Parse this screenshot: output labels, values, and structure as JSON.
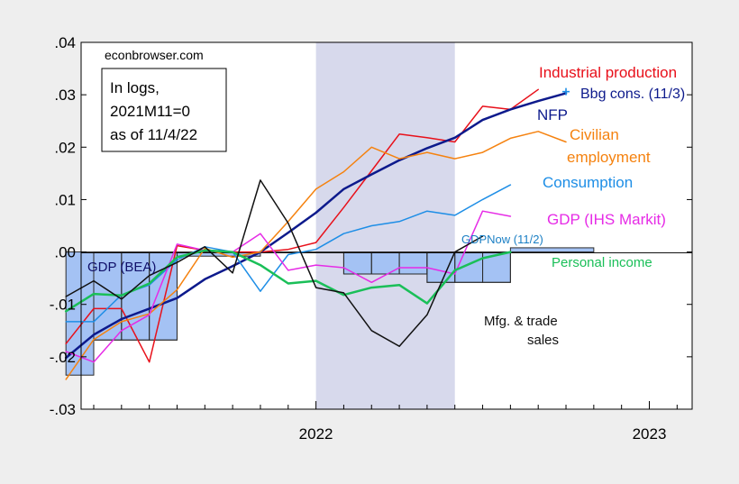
{
  "chart_data": {
    "type": "line",
    "watermark": "econbrowser.com",
    "note_lines": [
      "In logs,",
      "2021M11=0",
      "as of 11/4/22"
    ],
    "ylim": [
      -0.03,
      0.04
    ],
    "y_ticks": [
      {
        "value": 0.04,
        "label": ".04"
      },
      {
        "value": 0.03,
        "label": ".03"
      },
      {
        "value": 0.02,
        "label": ".02"
      },
      {
        "value": 0.01,
        "label": ".01"
      },
      {
        "value": 0.0,
        "label": ".00"
      },
      {
        "value": -0.01,
        "label": "-.01"
      },
      {
        "value": -0.02,
        "label": "-.02"
      },
      {
        "value": -0.03,
        "label": "-.03"
      }
    ],
    "x_start": "2021-04",
    "x_end": "2023-03",
    "x_tick_months": [
      "2021-05",
      "2021-06",
      "2021-07",
      "2021-08",
      "2021-09",
      "2021-10",
      "2021-11",
      "2021-12",
      "2022-01",
      "2022-02",
      "2022-03",
      "2022-04",
      "2022-05",
      "2022-06",
      "2022-07",
      "2022-08",
      "2022-09",
      "2022-10",
      "2022-11",
      "2022-12",
      "2023-01",
      "2023-02"
    ],
    "x_year_labels": [
      {
        "month": "2022-01",
        "label": "2022"
      },
      {
        "month": "2023-01",
        "label": "2023"
      }
    ],
    "recession_shade": {
      "from": "2022-01",
      "to": "2022-06",
      "color": "#d7d9ec"
    },
    "bars": [
      {
        "name": "GDP (BEA)",
        "color": "#a4c2f4",
        "edge": "#2b2b2b",
        "label_color": "#10106a",
        "values": [
          {
            "from": "2021-04",
            "to": "2021-05",
            "value": -0.0235
          },
          {
            "from": "2021-05",
            "to": "2021-08",
            "value": -0.0168
          },
          {
            "from": "2021-08",
            "to": "2021-11",
            "value": -0.0008
          },
          {
            "from": "2021-11",
            "to": "2022-02",
            "value": 0.0
          },
          {
            "from": "2022-02",
            "to": "2022-05",
            "value": -0.0042
          },
          {
            "from": "2022-05",
            "to": "2022-08",
            "value": -0.0058
          }
        ]
      },
      {
        "name": "GDPNow (11/2)",
        "color": "#a4c2f4",
        "edge": "#2b2b2b",
        "label_color": "#1a7fc4",
        "values": [
          {
            "from": "2022-08",
            "to": "2022-11",
            "value": 0.0008
          }
        ]
      },
      {
        "name": "GDP (IHS Markit)",
        "color": "none",
        "edge": "#2b2b2b",
        "label_color": "#e62be6",
        "values": [
          {
            "from": "2021-05",
            "to": "2021-06",
            "value": -0.0168
          },
          {
            "from": "2021-06",
            "to": "2021-07",
            "value": -0.0168
          },
          {
            "from": "2021-07",
            "to": "2021-08",
            "value": -0.0168
          },
          {
            "from": "2022-02",
            "to": "2022-03",
            "value": -0.0042
          },
          {
            "from": "2022-03",
            "to": "2022-04",
            "value": -0.0042
          },
          {
            "from": "2022-04",
            "to": "2022-05",
            "value": -0.0042
          },
          {
            "from": "2022-05",
            "to": "2022-06",
            "value": -0.0058
          },
          {
            "from": "2022-06",
            "to": "2022-07",
            "value": -0.0058
          },
          {
            "from": "2022-07",
            "to": "2022-08",
            "value": -0.0058
          }
        ]
      }
    ],
    "series": [
      {
        "name": "Industrial production",
        "color": "#e8101a",
        "width": 1.5,
        "x": [
          "2021-04",
          "2021-05",
          "2021-06",
          "2021-07",
          "2021-08",
          "2021-09",
          "2021-10",
          "2021-11",
          "2021-12",
          "2022-01",
          "2022-02",
          "2022-03",
          "2022-04",
          "2022-05",
          "2022-06",
          "2022-07",
          "2022-08",
          "2022-09",
          "2022-10"
        ],
        "y": [
          -0.0175,
          -0.0108,
          -0.0108,
          -0.021,
          0.0012,
          0.0003,
          0.0,
          0.0,
          0.0005,
          0.0018,
          0.0085,
          0.0155,
          0.0225,
          0.0218,
          0.021,
          0.0278,
          0.0272,
          0.031,
          null
        ]
      },
      {
        "name": "NFP",
        "color": "#0d1a8c",
        "width": 2.5,
        "x": [
          "2021-04",
          "2021-05",
          "2021-06",
          "2021-07",
          "2021-08",
          "2021-09",
          "2021-10",
          "2021-11",
          "2021-12",
          "2022-01",
          "2022-02",
          "2022-03",
          "2022-04",
          "2022-05",
          "2022-06",
          "2022-07",
          "2022-08",
          "2022-09",
          "2022-10"
        ],
        "y": [
          -0.0202,
          -0.0158,
          -0.0128,
          -0.0108,
          -0.0088,
          -0.0052,
          -0.0027,
          0.0,
          0.0037,
          0.0075,
          0.012,
          0.0148,
          0.0175,
          0.0198,
          0.0218,
          0.0252,
          0.0272,
          0.0288,
          0.0303
        ]
      },
      {
        "name": "Civilian employment",
        "color": "#f5820f",
        "width": 1.5,
        "x": [
          "2021-04",
          "2021-05",
          "2021-06",
          "2021-07",
          "2021-08",
          "2021-09",
          "2021-10",
          "2021-11",
          "2021-12",
          "2022-01",
          "2022-02",
          "2022-03",
          "2022-04",
          "2022-05",
          "2022-06",
          "2022-07",
          "2022-08",
          "2022-09",
          "2022-10"
        ],
        "y": [
          -0.0243,
          -0.0167,
          -0.0133,
          -0.0118,
          -0.0072,
          0.0007,
          -0.001,
          0.0,
          0.0058,
          0.012,
          0.0153,
          0.02,
          0.0178,
          0.019,
          0.0178,
          0.019,
          0.0217,
          0.023,
          0.021
        ]
      },
      {
        "name": "Consumption",
        "color": "#1e8ee6",
        "width": 1.5,
        "x": [
          "2021-04",
          "2021-05",
          "2021-06",
          "2021-07",
          "2021-08",
          "2021-09",
          "2021-10",
          "2021-11",
          "2021-12",
          "2022-01",
          "2022-02",
          "2022-03",
          "2022-04",
          "2022-05",
          "2022-06",
          "2022-07",
          "2022-08",
          "2022-09"
        ],
        "y": [
          -0.0133,
          -0.0133,
          -0.0082,
          -0.0063,
          -0.0015,
          0.001,
          0.0,
          -0.0075,
          -0.0005,
          0.0005,
          0.0035,
          0.005,
          0.0058,
          0.0078,
          0.007,
          0.01,
          0.0128,
          null
        ]
      },
      {
        "name": "GDP (IHS Markit)",
        "color": "#e62be6",
        "width": 1.5,
        "x": [
          "2021-04",
          "2021-05",
          "2021-06",
          "2021-07",
          "2021-08",
          "2021-09",
          "2021-10",
          "2021-11",
          "2021-12",
          "2022-01",
          "2022-02",
          "2022-03",
          "2022-04",
          "2022-05",
          "2022-06",
          "2022-07",
          "2022-08",
          "2022-09"
        ],
        "y": [
          -0.019,
          -0.021,
          -0.015,
          -0.012,
          0.0015,
          0.0003,
          0.0,
          0.0035,
          -0.0035,
          -0.0025,
          -0.003,
          -0.0058,
          -0.003,
          -0.003,
          -0.0042,
          0.0078,
          0.0068,
          null
        ]
      },
      {
        "name": "Personal income",
        "color": "#1abf58",
        "width": 2.5,
        "x": [
          "2021-04",
          "2021-05",
          "2021-06",
          "2021-07",
          "2021-08",
          "2021-09",
          "2021-10",
          "2021-11",
          "2021-12",
          "2022-01",
          "2022-02",
          "2022-03",
          "2022-04",
          "2022-05",
          "2022-06",
          "2022-07",
          "2022-08",
          "2022-09"
        ],
        "y": [
          -0.0113,
          -0.008,
          -0.0083,
          -0.006,
          -0.001,
          0.0003,
          0.0,
          -0.0025,
          -0.006,
          -0.0055,
          -0.0082,
          -0.0068,
          -0.0063,
          -0.0098,
          -0.0035,
          -0.0012,
          0.0,
          null
        ]
      },
      {
        "name": "Mfg. & trade sales",
        "color": "#111111",
        "width": 1.5,
        "x": [
          "2021-04",
          "2021-05",
          "2021-06",
          "2021-07",
          "2021-08",
          "2021-09",
          "2021-10",
          "2021-11",
          "2021-12",
          "2022-01",
          "2022-02",
          "2022-03",
          "2022-04",
          "2022-05",
          "2022-06",
          "2022-07",
          "2022-08"
        ],
        "y": [
          -0.0085,
          -0.0055,
          -0.009,
          -0.0045,
          -0.002,
          0.001,
          -0.004,
          0.0137,
          0.0055,
          -0.0068,
          -0.0078,
          -0.015,
          -0.018,
          -0.012,
          0.0,
          0.003,
          null
        ]
      }
    ],
    "markers": [
      {
        "name": "Bbg cons. (11/3)",
        "x": "2022-10",
        "y": 0.0306,
        "color": "#1e8ee6",
        "symbol": "+"
      }
    ],
    "labels": [
      {
        "text": "Industrial production",
        "color": "#e8101a"
      },
      {
        "text": "Bbg cons. (11/3)",
        "color": "#0d1a8c"
      },
      {
        "text": "NFP",
        "color": "#0d1a8c"
      },
      {
        "text": "Civilian",
        "color": "#f5820f"
      },
      {
        "text": "employment",
        "color": "#f5820f"
      },
      {
        "text": "Consumption",
        "color": "#1e8ee6"
      },
      {
        "text": "GDP (IHS Markit)",
        "color": "#e62be6"
      },
      {
        "text": "GDPNow (11/2)",
        "color": "#1a7fc4"
      },
      {
        "text": "Personal income",
        "color": "#1abf58"
      },
      {
        "text": "GDP (BEA)",
        "color": "#10106a"
      },
      {
        "text": "Mfg. & trade",
        "color": "#111111"
      },
      {
        "text": "sales",
        "color": "#111111"
      }
    ]
  }
}
